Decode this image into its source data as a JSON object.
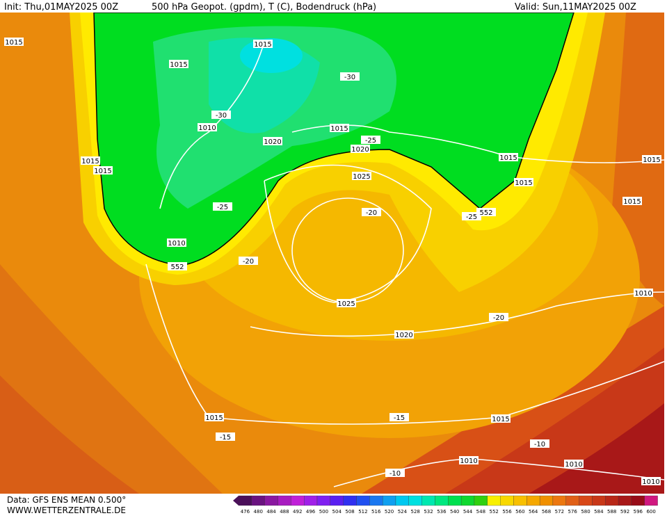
{
  "header": {
    "init": "Init: Thu,01MAY2025 00Z",
    "title": "500 hPa Geopot. (gpdm), T (C), Bodendruck (hPa)",
    "valid": "Valid: Sun,11MAY2025 00Z"
  },
  "map": {
    "contour_labels": [
      "1015",
      "1015",
      "1015",
      "-30",
      "-30",
      "1010",
      "1015",
      "1020",
      "-25",
      "1020",
      "1015",
      "1015",
      "1015",
      "1015",
      "1025",
      "1015",
      "1015",
      "-25",
      "-20",
      "-25",
      "552",
      "1010",
      "552",
      "-20",
      "1010",
      "1025",
      "-20",
      "1020",
      "1015",
      "-15",
      "1015",
      "-15",
      "-10",
      "1010",
      "1010",
      "-10",
      "1010"
    ]
  },
  "footer": {
    "data": "Data: GFS ENS MEAN 0.500°",
    "site": "WWW.WETTERZENTRALE.DE"
  },
  "colorbar": {
    "values": [
      476,
      480,
      484,
      488,
      492,
      496,
      500,
      504,
      508,
      512,
      516,
      520,
      524,
      528,
      532,
      536,
      540,
      544,
      548,
      552,
      556,
      560,
      564,
      568,
      572,
      576,
      580,
      584,
      588,
      592,
      596,
      600
    ],
    "colors": [
      "#4b0f5a",
      "#6a1380",
      "#8a18a0",
      "#a81cc0",
      "#c020d8",
      "#a020e8",
      "#8020f0",
      "#5a20f0",
      "#3030f0",
      "#2050f0",
      "#1a78f0",
      "#10a0f0",
      "#00c8f0",
      "#00e0e0",
      "#00e8b0",
      "#00e880",
      "#00e050",
      "#10d830",
      "#30d010",
      "#f8f000",
      "#f8d800",
      "#f8c000",
      "#f5a800",
      "#f09000",
      "#ec7810",
      "#e06018",
      "#d84818",
      "#c83818",
      "#b82818",
      "#a81818",
      "#980c18",
      "#d01880"
    ]
  }
}
